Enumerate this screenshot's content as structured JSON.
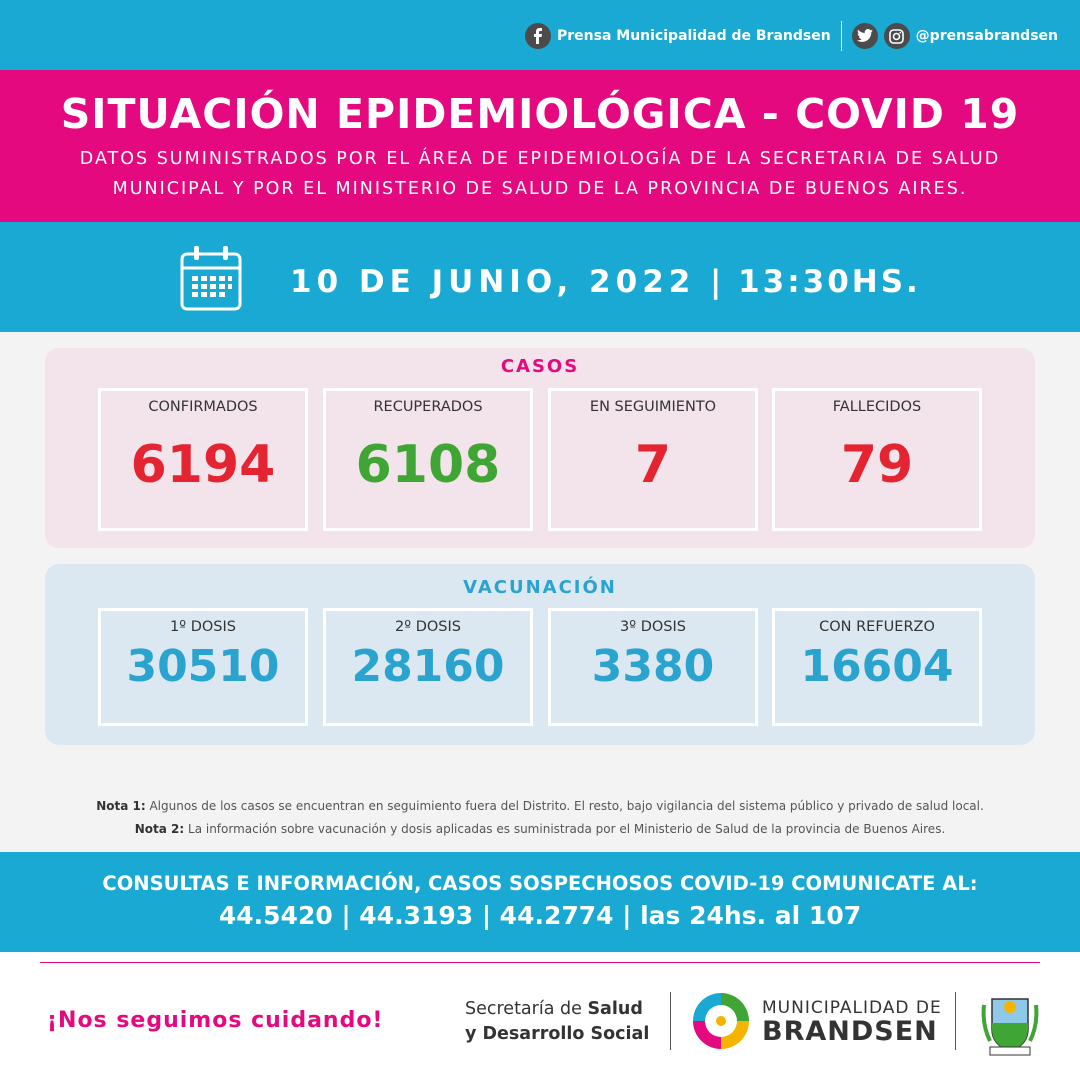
{
  "header": {
    "facebook_label": "Prensa Municipalidad de Brandsen",
    "social_handle": "@prensabrandsen"
  },
  "title": "SITUACIÓN EPIDEMIOLÓGICA - COVID 19",
  "subtitle_line1": "DATOS SUMINISTRADOS POR EL ÁREA DE EPIDEMIOLOGÍA DE LA SECRETARIA DE SALUD",
  "subtitle_line2": "MUNICIPAL Y POR EL MINISTERIO DE SALUD DE LA PROVINCIA DE BUENOS AIRES.",
  "date": "10 DE JUNIO, 2022",
  "time": "| 13:30HS.",
  "casos": {
    "title": "CASOS",
    "items": [
      {
        "label": "CONFIRMADOS",
        "value": "6194"
      },
      {
        "label": "RECUPERADOS",
        "value": "6108"
      },
      {
        "label": "EN SEGUIMIENTO",
        "value": "7"
      },
      {
        "label": "FALLECIDOS",
        "value": "79"
      }
    ]
  },
  "vacunacion": {
    "title": "VACUNACIÓN",
    "items": [
      {
        "label": "1º DOSIS",
        "value": "30510"
      },
      {
        "label": "2º DOSIS",
        "value": "28160"
      },
      {
        "label": "3º DOSIS",
        "value": "3380"
      },
      {
        "label": "CON REFUERZO",
        "value": "16604"
      }
    ]
  },
  "notes": {
    "nota1_label": "Nota 1:",
    "nota1_text": "Algunos de los casos se encuentran en seguimiento fuera del Distrito. El resto, bajo vigilancia del sistema público y privado de salud local.",
    "nota2_label": "Nota 2:",
    "nota2_text": "La información sobre vacunación y dosis aplicadas es suministrada por el Ministerio de Salud de la provincia de Buenos Aires."
  },
  "info": {
    "line1": "CONSULTAS E INFORMACIÓN, CASOS SOSPECHOSOS COVID-19 COMUNICATE AL:",
    "line2": "44.5420 | 44.3193 | 44.2774 | las 24hs. al 107"
  },
  "footer": {
    "slogan": "¡Nos seguimos cuidando!",
    "secretaria_pre": "Secretaría de ",
    "secretaria_bold1": "Salud",
    "secretaria_bold2": "y Desarrollo Social",
    "muni_top": "MUNICIPALIDAD DE",
    "muni_bottom": "BRANDSEN"
  },
  "colors": {
    "cyan": "#19a9d2",
    "magenta": "#e5097f",
    "red": "#e52432",
    "green": "#3fa535",
    "vaccine_blue": "#2aa3cf"
  }
}
